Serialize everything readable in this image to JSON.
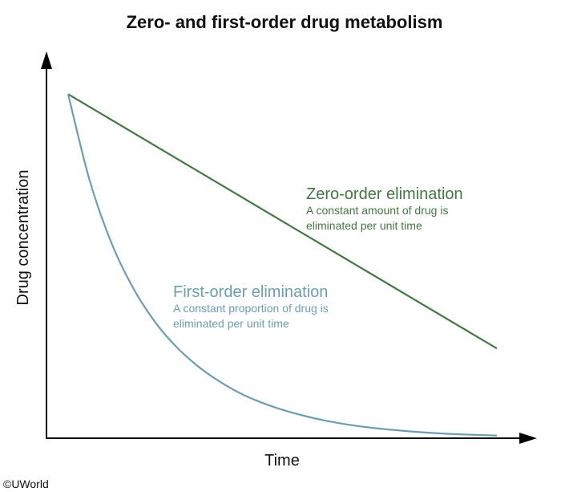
{
  "chart_data": {
    "type": "line",
    "title": "Zero- and first-order drug metabolism",
    "xlabel": "Time",
    "ylabel": "Drug concentration",
    "xlim": [
      0,
      10
    ],
    "ylim": [
      0,
      10
    ],
    "grid": false,
    "legend": "none",
    "series": [
      {
        "key": "zero",
        "color": "#3f7a3f",
        "x": [
          0,
          10
        ],
        "y": [
          9.2,
          2.4
        ],
        "annotation": {
          "title": "Zero-order elimination",
          "lines": [
            "A constant amount of drug is",
            "eliminated per unit time"
          ]
        }
      },
      {
        "key": "first",
        "color": "#6a9fb3",
        "x": [
          0,
          0.5,
          1,
          1.5,
          2,
          2.5,
          3,
          3.5,
          4,
          4.5,
          5,
          5.5,
          6,
          6.5,
          7,
          7.5,
          8,
          8.5,
          9,
          9.5,
          10
        ],
        "y": [
          9.2,
          6.9,
          5.25,
          4.05,
          3.15,
          2.47,
          1.95,
          1.54,
          1.21,
          0.96,
          0.76,
          0.6,
          0.47,
          0.37,
          0.29,
          0.23,
          0.18,
          0.14,
          0.11,
          0.09,
          0.07
        ],
        "annotation": {
          "title": "First-order elimination",
          "lines": [
            "A constant proportion of drug is",
            "eliminated per unit time"
          ]
        }
      }
    ]
  },
  "footer": {
    "copyright": "©UWorld"
  }
}
